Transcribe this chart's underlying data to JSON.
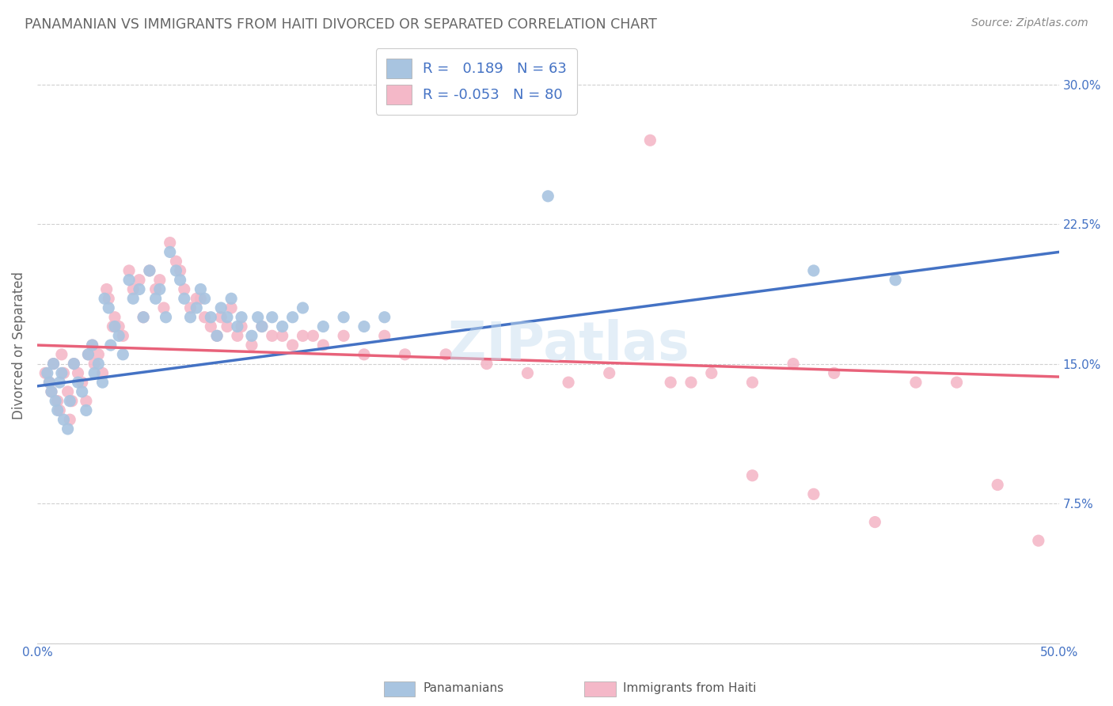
{
  "title": "PANAMANIAN VS IMMIGRANTS FROM HAITI DIVORCED OR SEPARATED CORRELATION CHART",
  "source": "Source: ZipAtlas.com",
  "ylabel": "Divorced or Separated",
  "xlim": [
    0.0,
    0.5
  ],
  "ylim": [
    0.0,
    0.32
  ],
  "xticks": [
    0.0,
    0.1,
    0.2,
    0.3,
    0.4,
    0.5
  ],
  "yticks": [
    0.0,
    0.075,
    0.15,
    0.225,
    0.3
  ],
  "blue_color": "#a8c4e0",
  "pink_color": "#f4b8c8",
  "blue_line_color": "#4472c4",
  "pink_line_color": "#e8627a",
  "blue_R": 0.189,
  "blue_N": 63,
  "pink_R": -0.053,
  "pink_N": 80,
  "watermark": "ZIPatlas",
  "legend_label_blue": "Panamanians",
  "legend_label_pink": "Immigrants from Haiti",
  "background_color": "#ffffff",
  "grid_color": "#d0d0d0",
  "title_color": "#666666",
  "blue_scatter_x": [
    0.005,
    0.006,
    0.007,
    0.008,
    0.009,
    0.01,
    0.011,
    0.012,
    0.013,
    0.015,
    0.016,
    0.018,
    0.02,
    0.022,
    0.024,
    0.025,
    0.027,
    0.028,
    0.03,
    0.032,
    0.033,
    0.035,
    0.036,
    0.038,
    0.04,
    0.042,
    0.045,
    0.047,
    0.05,
    0.052,
    0.055,
    0.058,
    0.06,
    0.063,
    0.065,
    0.068,
    0.07,
    0.072,
    0.075,
    0.078,
    0.08,
    0.082,
    0.085,
    0.088,
    0.09,
    0.093,
    0.095,
    0.098,
    0.1,
    0.105,
    0.108,
    0.11,
    0.115,
    0.12,
    0.125,
    0.13,
    0.14,
    0.15,
    0.16,
    0.17,
    0.25,
    0.38,
    0.42
  ],
  "blue_scatter_y": [
    0.145,
    0.14,
    0.135,
    0.15,
    0.13,
    0.125,
    0.14,
    0.145,
    0.12,
    0.115,
    0.13,
    0.15,
    0.14,
    0.135,
    0.125,
    0.155,
    0.16,
    0.145,
    0.15,
    0.14,
    0.185,
    0.18,
    0.16,
    0.17,
    0.165,
    0.155,
    0.195,
    0.185,
    0.19,
    0.175,
    0.2,
    0.185,
    0.19,
    0.175,
    0.21,
    0.2,
    0.195,
    0.185,
    0.175,
    0.18,
    0.19,
    0.185,
    0.175,
    0.165,
    0.18,
    0.175,
    0.185,
    0.17,
    0.175,
    0.165,
    0.175,
    0.17,
    0.175,
    0.17,
    0.175,
    0.18,
    0.17,
    0.175,
    0.17,
    0.175,
    0.24,
    0.2,
    0.195
  ],
  "pink_scatter_x": [
    0.004,
    0.006,
    0.007,
    0.008,
    0.01,
    0.011,
    0.012,
    0.013,
    0.015,
    0.016,
    0.017,
    0.018,
    0.02,
    0.022,
    0.024,
    0.025,
    0.027,
    0.028,
    0.03,
    0.032,
    0.034,
    0.035,
    0.037,
    0.038,
    0.04,
    0.042,
    0.045,
    0.047,
    0.05,
    0.052,
    0.055,
    0.058,
    0.06,
    0.062,
    0.065,
    0.068,
    0.07,
    0.072,
    0.075,
    0.078,
    0.08,
    0.082,
    0.085,
    0.088,
    0.09,
    0.093,
    0.095,
    0.098,
    0.1,
    0.105,
    0.11,
    0.115,
    0.12,
    0.125,
    0.13,
    0.135,
    0.14,
    0.15,
    0.16,
    0.17,
    0.18,
    0.2,
    0.22,
    0.24,
    0.26,
    0.28,
    0.31,
    0.33,
    0.35,
    0.37,
    0.39,
    0.41,
    0.43,
    0.45,
    0.47,
    0.49,
    0.3,
    0.32,
    0.35,
    0.38
  ],
  "pink_scatter_y": [
    0.145,
    0.14,
    0.135,
    0.15,
    0.13,
    0.125,
    0.155,
    0.145,
    0.135,
    0.12,
    0.13,
    0.15,
    0.145,
    0.14,
    0.13,
    0.155,
    0.16,
    0.15,
    0.155,
    0.145,
    0.19,
    0.185,
    0.17,
    0.175,
    0.17,
    0.165,
    0.2,
    0.19,
    0.195,
    0.175,
    0.2,
    0.19,
    0.195,
    0.18,
    0.215,
    0.205,
    0.2,
    0.19,
    0.18,
    0.185,
    0.185,
    0.175,
    0.17,
    0.165,
    0.175,
    0.17,
    0.18,
    0.165,
    0.17,
    0.16,
    0.17,
    0.165,
    0.165,
    0.16,
    0.165,
    0.165,
    0.16,
    0.165,
    0.155,
    0.165,
    0.155,
    0.155,
    0.15,
    0.145,
    0.14,
    0.145,
    0.14,
    0.145,
    0.14,
    0.15,
    0.145,
    0.065,
    0.14,
    0.14,
    0.085,
    0.055,
    0.27,
    0.14,
    0.09,
    0.08
  ]
}
